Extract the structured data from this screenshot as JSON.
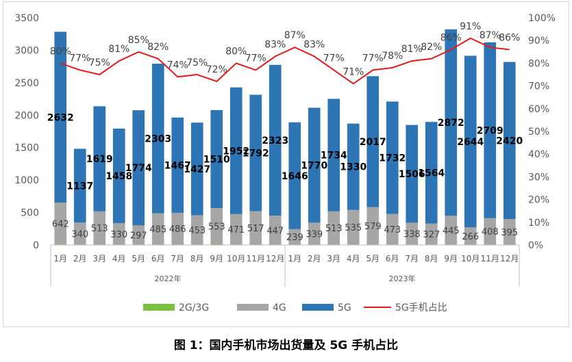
{
  "caption": "图 1：国内手机市场出货量及 5G 手机占比",
  "chart_data": {
    "type": "bar",
    "stacked": true,
    "categories": [
      "1月",
      "2月",
      "3月",
      "4月",
      "5月",
      "6月",
      "7月",
      "8月",
      "9月",
      "10月",
      "11月",
      "12月",
      "1月",
      "2月",
      "3月",
      "4月",
      "5月",
      "6月",
      "7月",
      "8月",
      "9月",
      "10月",
      "11月",
      "12月"
    ],
    "years": [
      {
        "label": "2022年",
        "count": 12
      },
      {
        "label": "2023年",
        "count": 12
      }
    ],
    "series": [
      {
        "name": "2G/3G",
        "color": "#7ac143",
        "values": [
          10,
          5,
          5,
          5,
          5,
          5,
          10,
          5,
          15,
          5,
          5,
          5,
          5,
          5,
          5,
          5,
          5,
          5,
          5,
          5,
          5,
          5,
          5,
          5
        ]
      },
      {
        "name": "4G",
        "color": "#a6a6a6",
        "values": [
          642,
          340,
          513,
          330,
          297,
          485,
          486,
          453,
          553,
          471,
          517,
          447,
          239,
          339,
          513,
          535,
          579,
          473,
          338,
          327,
          445,
          266,
          408,
          395
        ]
      },
      {
        "name": "5G",
        "color": "#2e75b6",
        "values": [
          2632,
          1137,
          1619,
          1458,
          1774,
          2303,
          1467,
          1427,
          1510,
          1952,
          1792,
          2323,
          1646,
          1770,
          1734,
          1330,
          2017,
          1732,
          1506,
          1564,
          2872,
          2644,
          2709,
          2420
        ]
      }
    ],
    "line_series": {
      "name": "5G手机占比",
      "color": "#e31a1c",
      "axis": "right",
      "values": [
        80,
        77,
        75,
        81,
        85,
        82,
        74,
        75,
        72,
        80,
        77,
        83,
        87,
        83,
        77,
        71,
        77,
        78,
        81,
        82,
        86,
        91,
        87,
        86
      ],
      "labels": [
        "80%",
        "77%",
        "75%",
        "81%",
        "85%",
        "82%",
        "74%",
        "75%",
        "72%",
        "80%",
        "77%",
        "83%",
        "87%",
        "83%",
        "77%",
        "71%",
        "77%",
        "78%",
        "81%",
        "82%",
        "86%",
        "91%",
        "87%",
        "86%"
      ]
    },
    "left_axis": {
      "min": 0,
      "max": 3500,
      "ticks": [
        "0",
        "500",
        "1000",
        "1500",
        "2000",
        "2500",
        "3000",
        "3500"
      ]
    },
    "right_axis": {
      "min": 0,
      "max": 100,
      "ticks": [
        "0%",
        "10%",
        "20%",
        "30%",
        "40%",
        "50%",
        "60%",
        "70%",
        "80%",
        "90%",
        "100%"
      ]
    },
    "legend": {
      "position": "bottom",
      "items": [
        "2G/3G",
        "4G",
        "5G",
        "5G手机占比"
      ]
    },
    "grid": false
  }
}
